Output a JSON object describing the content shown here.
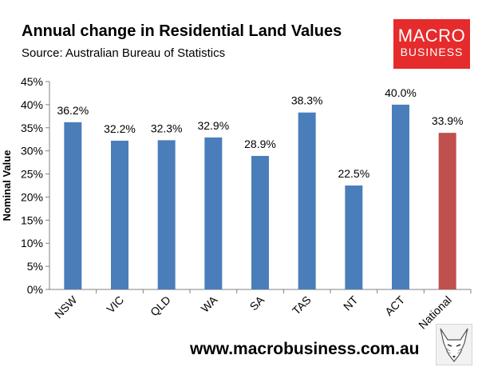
{
  "header": {
    "title": "Annual change in Residential Land Values",
    "subtitle": "Source: Australian Bureau of Statistics"
  },
  "logo": {
    "line1": "MACRO",
    "line2": "BUSINESS"
  },
  "footer": {
    "website": "www.macrobusiness.com.au"
  },
  "colors": {
    "primary_bar": "#4a7ebb",
    "highlight_bar": "#c0504d",
    "logo_bg": "#e52b2b"
  },
  "chart_data": {
    "type": "bar",
    "ylabel": "Nominal Value",
    "categories": [
      "NSW",
      "VIC",
      "QLD",
      "WA",
      "SA",
      "TAS",
      "NT",
      "ACT",
      "National"
    ],
    "values": [
      36.2,
      32.2,
      32.3,
      32.9,
      28.9,
      38.3,
      22.5,
      40.0,
      33.9
    ],
    "value_labels": [
      "36.2%",
      "32.2%",
      "32.3%",
      "32.9%",
      "28.9%",
      "38.3%",
      "22.5%",
      "40.0%",
      "33.9%"
    ],
    "highlight_category": "National",
    "ylim": [
      0,
      45
    ],
    "yticks": [
      "0%",
      "5%",
      "10%",
      "15%",
      "20%",
      "25%",
      "30%",
      "35%",
      "40%",
      "45%"
    ],
    "grid": false,
    "legend": "none"
  }
}
